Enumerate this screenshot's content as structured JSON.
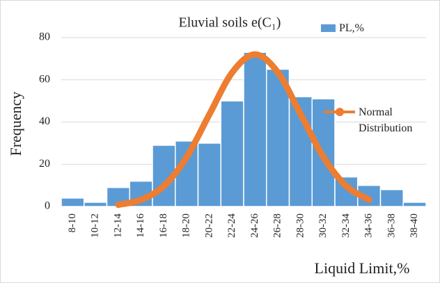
{
  "chart_data": {
    "type": "bar",
    "title": "Eluvial soils e(C₁)",
    "x_label": "Liquid Limit,%",
    "y_label": "Frequency",
    "categories": [
      "8-10",
      "10-12",
      "12-14",
      "14-16",
      "16-18",
      "18-20",
      "20-22",
      "22-24",
      "24-26",
      "26-28",
      "28-30",
      "30-32",
      "32-34",
      "34-36",
      "36-38",
      "38-40"
    ],
    "series": [
      {
        "name": "PL,%",
        "type": "bar",
        "color": "#5b9bd5",
        "values": [
          4,
          2,
          9,
          12,
          29,
          31,
          30,
          50,
          73,
          65,
          52,
          51,
          14,
          10,
          8,
          2
        ]
      },
      {
        "name": "Normal Distribution",
        "type": "line",
        "color": "#ed7d31",
        "values": [
          null,
          null,
          0.8,
          3.2,
          9.7,
          23.4,
          43.7,
          63.5,
          72,
          63.5,
          43.7,
          23.4,
          9.7,
          3.2,
          null,
          null
        ]
      }
    ],
    "ylim": [
      0,
      80
    ],
    "yticks": [
      0,
      20,
      40,
      60,
      80
    ],
    "grid": true,
    "legend": "right"
  }
}
